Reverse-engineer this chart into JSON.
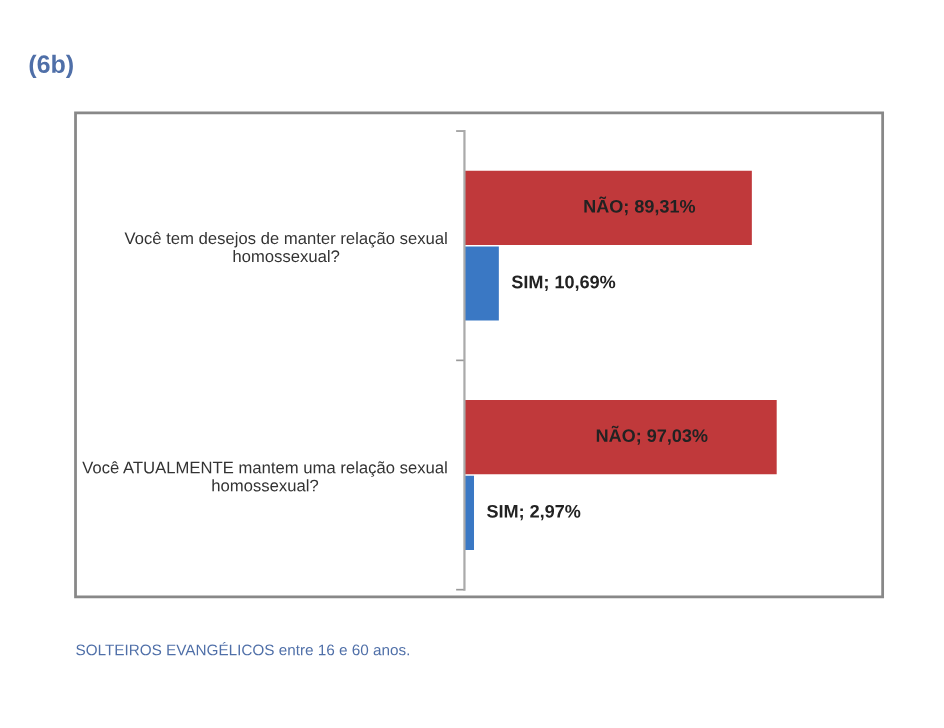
{
  "chart_data": {
    "type": "bar",
    "orientation": "horizontal",
    "title": "(6b)",
    "categories": [
      "Você tem desejos de manter relação sexual\nhomossexual?",
      "Você ATUALMENTE mantem uma relação sexual\nhomossexual?"
    ],
    "series": [
      {
        "name": "NÃO",
        "color": "#c0393b",
        "values": [
          89.31,
          97.03
        ],
        "value_labels": [
          "; 89,31%",
          "; 97,03%"
        ]
      },
      {
        "name": "SIM",
        "color": "#3a78c4",
        "values": [
          10.69,
          2.97
        ],
        "value_labels": [
          "; 10,69%",
          "; 2,97%"
        ]
      }
    ],
    "annotations": [
      "SOLTEIROS EVANGÉLICOS entre 16 e 60 anos."
    ],
    "legend": false,
    "grid": false
  }
}
